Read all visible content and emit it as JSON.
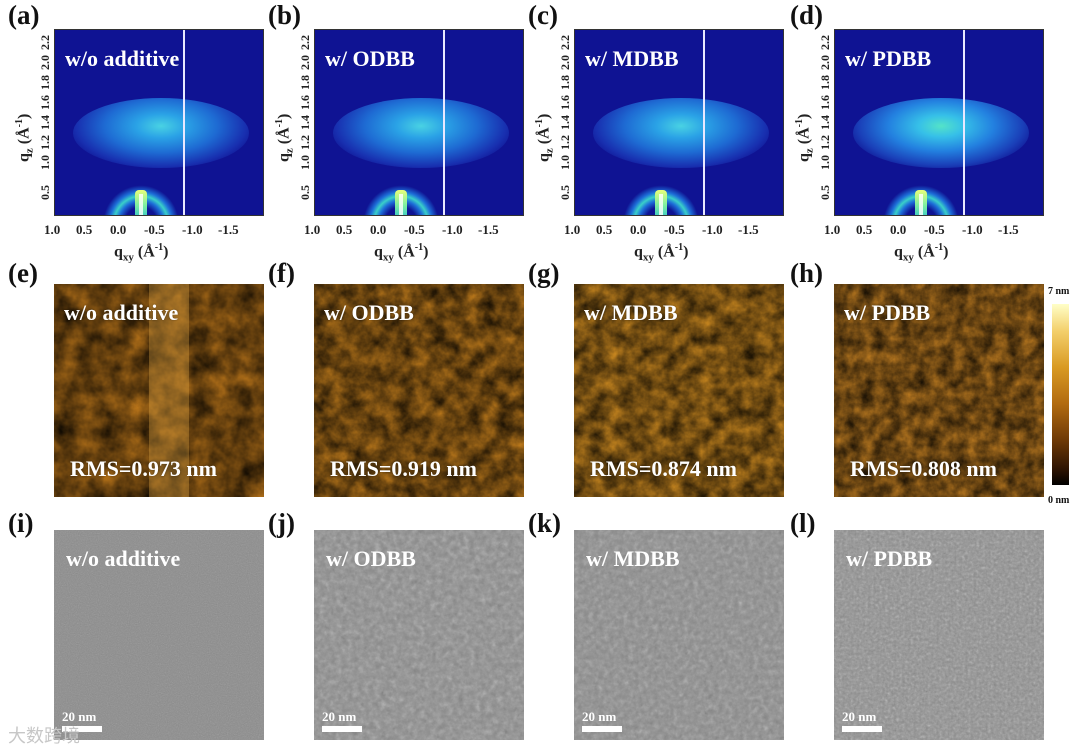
{
  "panels_row1": [
    {
      "label": "(a)",
      "title": "w/o additive"
    },
    {
      "label": "(b)",
      "title": "w/ ODBB"
    },
    {
      "label": "(c)",
      "title": "w/ MDBB"
    },
    {
      "label": "(d)",
      "title": "w/ PDBB"
    }
  ],
  "panels_row2": [
    {
      "label": "(e)",
      "title": "w/o additive",
      "rms": "RMS=0.973 nm"
    },
    {
      "label": "(f)",
      "title": "w/ ODBB",
      "rms": "RMS=0.919 nm"
    },
    {
      "label": "(g)",
      "title": "w/ MDBB",
      "rms": "RMS=0.874 nm"
    },
    {
      "label": "(h)",
      "title": "w/ PDBB",
      "rms": "RMS=0.808 nm"
    }
  ],
  "panels_row3": [
    {
      "label": "(i)",
      "title": "w/o additive",
      "scale": "20 nm"
    },
    {
      "label": "(j)",
      "title": "w/ ODBB",
      "scale": "20 nm"
    },
    {
      "label": "(k)",
      "title": "w/ MDBB",
      "scale": "20 nm"
    },
    {
      "label": "(l)",
      "title": "w/ PDBB",
      "scale": "20 nm"
    }
  ],
  "axes": {
    "y_ticks": [
      "2.2",
      "2.0",
      "1.8",
      "1.6",
      "1.4",
      "1.2",
      "1.0",
      "0.5"
    ],
    "x_ticks": [
      "1.0",
      "0.5",
      "0.0",
      "-0.5",
      "-1.0",
      "-1.5"
    ]
  },
  "colorbar": {
    "max": "7 nm",
    "min": "0 nm"
  },
  "colors": {
    "giwaxs_bg": "#0f1393",
    "afm_mid": "#b06a12",
    "tem_gray": "#8e8e8e"
  },
  "watermark": "大数跨境"
}
